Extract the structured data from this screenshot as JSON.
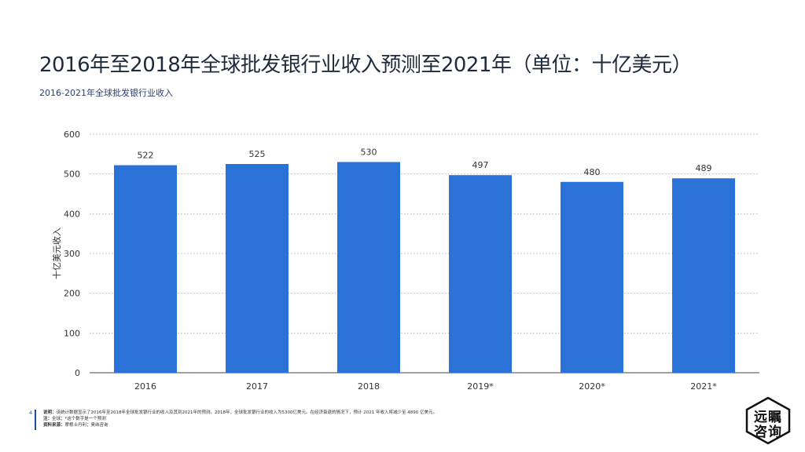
{
  "title": "2016年至2018年全球批发银行业收入预测至2021年（单位：十亿美元）",
  "subtitle": "2016-2021年全球批发银行业收入",
  "footer": {
    "page_number": "4",
    "desc_label": "说明：",
    "desc_text": "该统计数据显示了2016年至2018年全球批发银行业的收入及其到2021年的预测。2018年，全球批发银行业的收入为5300亿美元。在经济衰退的情况下，预计 2021 年收入将减少至 4890 亿美元。",
    "note_label": "注：",
    "note_text": "全球；*这个数字是一个预测",
    "source_label": "资料来源：",
    "source_text": "摩根士丹利；奥纬咨询"
  },
  "logo": {
    "line1": "远瞩",
    "line2": "咨询"
  },
  "chart_data": {
    "type": "bar",
    "categories": [
      "2016",
      "2017",
      "2018",
      "2019*",
      "2020*",
      "2021*"
    ],
    "values": [
      522,
      525,
      530,
      497,
      480,
      489
    ],
    "data_labels": [
      "522",
      "525",
      "530",
      "497",
      "480",
      "489"
    ],
    "xlabel": "",
    "ylabel": "十亿美元收入",
    "ylim": [
      0,
      600
    ],
    "yticks": [
      0,
      100,
      200,
      300,
      400,
      500,
      600
    ],
    "grid": true,
    "colors": {
      "bar": "#2a72d8",
      "grid": "#b5b5b5",
      "text": "#333333"
    }
  }
}
